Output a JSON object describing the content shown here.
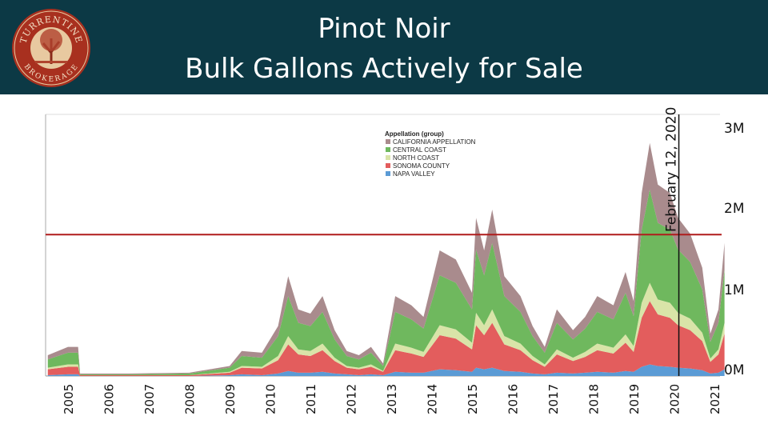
{
  "header": {
    "title_line1": "Pinot Noir",
    "title_line2": "Bulk Gallons Actively for Sale",
    "logo_text_top": "TURRENTINE",
    "logo_text_bottom": "BROKERAGE"
  },
  "colors": {
    "header_bg": "#0c3945",
    "threshold_line": "#b01c1c"
  },
  "chart_data": {
    "type": "area",
    "stacked": true,
    "title": "Pinot Noir Bulk Gallons Actively for Sale",
    "legend_title": "Appellation (group)",
    "legend_position": "top-center",
    "x": [
      2004.5,
      2005.0,
      2005.25,
      2005.3,
      2006.5,
      2008.0,
      2009.0,
      2009.3,
      2009.8,
      2010.2,
      2010.45,
      2010.7,
      2011.0,
      2011.3,
      2011.6,
      2011.9,
      2012.2,
      2012.5,
      2012.8,
      2013.1,
      2013.5,
      2013.8,
      2014.2,
      2014.6,
      2015.0,
      2015.1,
      2015.3,
      2015.5,
      2015.8,
      2016.2,
      2016.5,
      2016.8,
      2017.1,
      2017.5,
      2017.8,
      2018.1,
      2018.5,
      2018.8,
      2019.0,
      2019.2,
      2019.4,
      2019.6,
      2019.9,
      2020.1,
      2020.4,
      2020.7,
      2020.9,
      2021.1,
      2021.25
    ],
    "x_ticks": [
      "2005",
      "2006",
      "2007",
      "2008",
      "2009",
      "2010",
      "2011",
      "2012",
      "2013",
      "2014",
      "2015",
      "2016",
      "2017",
      "2018",
      "2019",
      "2020",
      "2021"
    ],
    "y_ticks": [
      "0M",
      "1M",
      "2M",
      "3M"
    ],
    "ylim": [
      0,
      3.1
    ],
    "y_unit": "million gallons",
    "series": [
      {
        "name": "NAPA VALLEY",
        "color": "#5b9bd5",
        "values": [
          0.01,
          0.02,
          0.02,
          0,
          0,
          0,
          0.01,
          0.02,
          0.01,
          0.03,
          0.06,
          0.04,
          0.04,
          0.05,
          0.03,
          0.02,
          0.01,
          0.02,
          0.01,
          0.05,
          0.04,
          0.04,
          0.08,
          0.07,
          0.05,
          0.1,
          0.08,
          0.1,
          0.06,
          0.05,
          0.03,
          0.02,
          0.04,
          0.03,
          0.04,
          0.05,
          0.04,
          0.06,
          0.05,
          0.11,
          0.14,
          0.12,
          0.11,
          0.1,
          0.09,
          0.07,
          0.03,
          0.04,
          0.08
        ]
      },
      {
        "name": "SONOMA COUNTY",
        "color": "#e35d5d",
        "values": [
          0.07,
          0.09,
          0.09,
          0.01,
          0.01,
          0.01,
          0.03,
          0.08,
          0.08,
          0.16,
          0.32,
          0.22,
          0.2,
          0.26,
          0.15,
          0.08,
          0.07,
          0.09,
          0.04,
          0.26,
          0.23,
          0.19,
          0.41,
          0.38,
          0.27,
          0.51,
          0.41,
          0.54,
          0.32,
          0.26,
          0.16,
          0.09,
          0.22,
          0.15,
          0.19,
          0.26,
          0.23,
          0.34,
          0.24,
          0.59,
          0.76,
          0.62,
          0.59,
          0.51,
          0.46,
          0.35,
          0.14,
          0.22,
          0.43
        ]
      },
      {
        "name": "NORTH COAST",
        "color": "#d9e4a8",
        "values": [
          0.02,
          0.03,
          0.03,
          0,
          0,
          0,
          0.01,
          0.02,
          0.02,
          0.05,
          0.1,
          0.06,
          0.06,
          0.08,
          0.04,
          0.02,
          0.02,
          0.03,
          0.01,
          0.08,
          0.07,
          0.06,
          0.12,
          0.11,
          0.08,
          0.15,
          0.12,
          0.16,
          0.1,
          0.08,
          0.05,
          0.03,
          0.06,
          0.04,
          0.06,
          0.08,
          0.07,
          0.1,
          0.07,
          0.18,
          0.22,
          0.18,
          0.18,
          0.15,
          0.14,
          0.1,
          0.04,
          0.06,
          0.13
        ]
      },
      {
        "name": "CENTRAL COAST",
        "color": "#6fb85e",
        "values": [
          0.1,
          0.14,
          0.14,
          0.01,
          0.01,
          0.02,
          0.05,
          0.12,
          0.11,
          0.24,
          0.48,
          0.32,
          0.3,
          0.38,
          0.22,
          0.12,
          0.1,
          0.14,
          0.06,
          0.38,
          0.34,
          0.28,
          0.6,
          0.56,
          0.4,
          0.76,
          0.6,
          0.8,
          0.48,
          0.38,
          0.24,
          0.14,
          0.32,
          0.22,
          0.28,
          0.38,
          0.34,
          0.5,
          0.36,
          0.88,
          1.12,
          0.92,
          0.88,
          0.76,
          0.68,
          0.52,
          0.2,
          0.32,
          0.64
        ]
      },
      {
        "name": "CALIFORNIA APPELLATION",
        "color": "#a98b8d",
        "values": [
          0.05,
          0.07,
          0.07,
          0.01,
          0.01,
          0.01,
          0.02,
          0.06,
          0.06,
          0.12,
          0.24,
          0.16,
          0.15,
          0.19,
          0.11,
          0.06,
          0.05,
          0.07,
          0.03,
          0.19,
          0.17,
          0.14,
          0.3,
          0.28,
          0.2,
          0.38,
          0.3,
          0.4,
          0.24,
          0.19,
          0.12,
          0.07,
          0.16,
          0.11,
          0.14,
          0.19,
          0.17,
          0.25,
          0.18,
          0.44,
          0.56,
          0.46,
          0.44,
          0.38,
          0.34,
          0.26,
          0.1,
          0.16,
          0.32
        ]
      }
    ],
    "threshold_line_value": 1.7,
    "annotation": {
      "label": "February 12, 2020",
      "x": 2020.12
    }
  }
}
